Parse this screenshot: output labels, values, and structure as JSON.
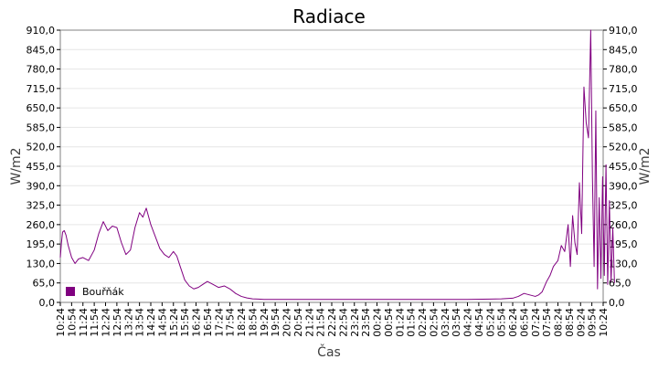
{
  "chart_data": {
    "type": "line",
    "title": "Radiace",
    "xlabel": "Čas",
    "ylabel_left": "W/m2",
    "ylabel_right": "W/m2",
    "ylim": [
      0,
      910
    ],
    "y_ticks": [
      "0,0",
      "65,0",
      "130,0",
      "195,0",
      "260,0",
      "325,0",
      "390,0",
      "455,0",
      "520,0",
      "585,0",
      "650,0",
      "715,0",
      "780,0",
      "845,0",
      "910,0"
    ],
    "x_ticks": [
      "10:24",
      "10:54",
      "11:24",
      "11:54",
      "12:24",
      "12:54",
      "13:24",
      "13:54",
      "14:24",
      "14:54",
      "15:24",
      "15:54",
      "16:24",
      "16:54",
      "17:24",
      "17:54",
      "18:24",
      "18:54",
      "19:24",
      "19:54",
      "20:24",
      "20:54",
      "21:24",
      "21:54",
      "22:24",
      "22:54",
      "23:24",
      "23:54",
      "00:24",
      "00:54",
      "01:24",
      "01:54",
      "02:24",
      "02:54",
      "03:24",
      "03:54",
      "04:24",
      "04:54",
      "05:24",
      "05:54",
      "06:24",
      "06:54",
      "07:24",
      "07:54",
      "08:24",
      "08:54",
      "09:24",
      "09:54",
      "10:24"
    ],
    "grid": true,
    "legend_position": "bottom-left",
    "series": [
      {
        "name": "Bouřňák",
        "color": "#800080",
        "x": [
          0,
          0.1,
          0.2,
          0.35,
          0.5,
          0.7,
          1,
          1.3,
          1.6,
          2,
          2.5,
          3,
          3.4,
          3.8,
          4.2,
          4.6,
          5,
          5.4,
          5.8,
          6.2,
          6.6,
          7,
          7.3,
          7.6,
          8,
          8.4,
          8.8,
          9.2,
          9.6,
          10,
          10.3,
          10.6,
          11,
          11.4,
          11.8,
          12.2,
          12.6,
          13,
          13.5,
          14,
          14.5,
          15,
          15.5,
          16,
          16.5,
          17,
          17.5,
          18,
          19,
          20,
          22,
          24,
          26,
          28,
          30,
          32,
          34,
          36,
          38,
          39,
          40,
          40.5,
          41,
          41.5,
          42,
          42.3,
          42.6,
          43,
          43.3,
          43.6,
          44,
          44.3,
          44.6,
          44.9,
          45.1,
          45.3,
          45.5,
          45.7,
          45.9,
          46.1,
          46.3,
          46.5,
          46.7,
          46.9,
          47.05,
          47.2,
          47.35,
          47.5,
          47.65,
          47.8,
          47.95,
          48.1,
          48.25,
          48.4,
          48.55,
          48.7,
          48.85,
          49
        ],
        "y": [
          150,
          200,
          235,
          240,
          225,
          190,
          150,
          130,
          145,
          150,
          140,
          175,
          230,
          270,
          240,
          255,
          250,
          200,
          160,
          175,
          250,
          300,
          285,
          315,
          260,
          220,
          180,
          160,
          150,
          170,
          155,
          120,
          75,
          55,
          45,
          50,
          60,
          70,
          60,
          50,
          55,
          45,
          30,
          20,
          15,
          12,
          11,
          10,
          10,
          10,
          10,
          10,
          10,
          10,
          10,
          10,
          10,
          10,
          11,
          12,
          14,
          20,
          30,
          25,
          20,
          25,
          35,
          70,
          90,
          120,
          140,
          190,
          170,
          260,
          120,
          290,
          200,
          160,
          400,
          230,
          720,
          600,
          550,
          910,
          420,
          120,
          640,
          45,
          350,
          80,
          420,
          90,
          460,
          60,
          340,
          70,
          250,
          65
        ]
      }
    ]
  }
}
